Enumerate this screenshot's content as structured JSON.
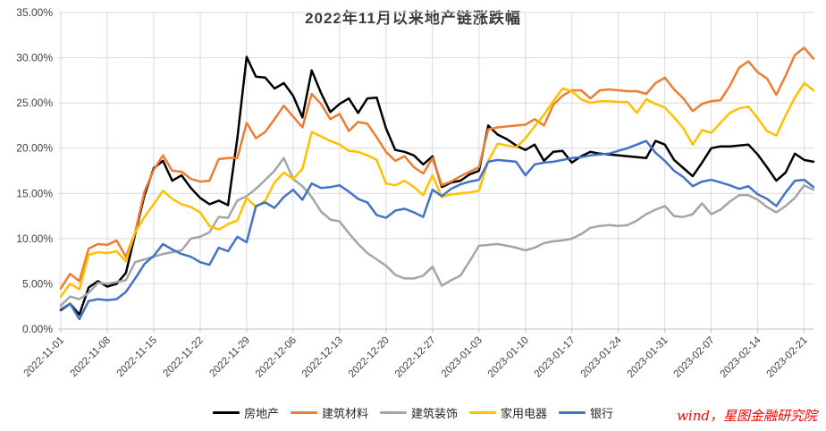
{
  "title": "2022年11月以来地产链涨跌幅",
  "watermark": "wind，星图金融研究院",
  "chart_data": {
    "type": "line",
    "title": "2022年11月以来地产链涨跌幅",
    "legend_position": "bottom",
    "grid": true,
    "y_axis": {
      "min": 0,
      "max": 35,
      "step": 5,
      "tick_labels": [
        "0.00%",
        "5.00%",
        "10.00%",
        "15.00%",
        "20.00%",
        "25.00%",
        "30.00%",
        "35.00%"
      ]
    },
    "x_labels": [
      "2022-11-01",
      "2022-11-08",
      "2022-11-15",
      "2022-11-22",
      "2022-11-29",
      "2022-12-06",
      "2022-12-13",
      "2022-12-20",
      "2022-12-27",
      "2023-01-03",
      "2023-01-10",
      "2023-01-17",
      "2023-01-24",
      "2023-01-31",
      "2023-02-07",
      "2023-02-14",
      "2023-02-21"
    ],
    "points_per_label": 5,
    "unit": "percent",
    "series": [
      {
        "name": "房地产",
        "color": "#000000",
        "values": [
          2.1,
          2.8,
          1.6,
          4.6,
          5.3,
          4.7,
          5.0,
          6.2,
          10.5,
          14.8,
          17.8,
          18.6,
          16.4,
          17.0,
          15.6,
          14.5,
          13.8,
          14.2,
          13.7,
          21.1,
          30.1,
          27.9,
          27.8,
          26.6,
          27.2,
          25.8,
          23.4,
          28.6,
          26.1,
          24.0,
          24.9,
          25.5,
          23.9,
          25.5,
          25.6,
          22.2,
          19.8,
          19.6,
          19.2,
          18.2,
          19.1,
          15.7,
          16.2,
          16.4,
          17.1,
          17.5,
          22.5,
          21.5,
          21.0,
          20.3,
          19.8,
          20.4,
          18.6,
          19.6,
          19.7,
          18.4,
          19.1,
          19.6,
          19.4,
          19.3,
          19.2,
          19.1,
          19.0,
          18.9,
          20.8,
          20.4,
          18.7,
          17.8,
          16.9,
          18.4,
          20.0,
          20.2,
          20.2,
          20.3,
          20.4,
          19.3,
          17.9,
          16.4,
          17.3,
          19.4,
          18.7,
          18.5
        ]
      },
      {
        "name": "建筑材料",
        "color": "#ED7D31",
        "values": [
          4.5,
          6.1,
          5.3,
          8.9,
          9.4,
          9.3,
          9.8,
          8.0,
          10.7,
          15.2,
          17.6,
          19.2,
          17.5,
          17.4,
          16.6,
          16.3,
          16.4,
          18.8,
          18.9,
          18.9,
          22.8,
          21.1,
          21.8,
          23.2,
          24.7,
          23.5,
          22.3,
          26.0,
          24.9,
          23.2,
          23.8,
          21.9,
          22.9,
          22.7,
          21.2,
          19.6,
          18.6,
          19.1,
          17.9,
          17.2,
          18.9,
          15.9,
          16.3,
          16.9,
          17.4,
          17.9,
          22.1,
          22.3,
          22.4,
          22.5,
          22.6,
          23.2,
          22.5,
          24.8,
          25.8,
          26.4,
          26.4,
          25.5,
          26.4,
          26.5,
          26.4,
          26.3,
          26.3,
          26.0,
          27.2,
          27.8,
          26.5,
          25.5,
          24.1,
          24.9,
          25.2,
          25.3,
          26.9,
          28.9,
          29.6,
          28.4,
          27.7,
          25.9,
          28.0,
          30.3,
          31.1,
          29.9
        ]
      },
      {
        "name": "建筑装饰",
        "color": "#A5A5A5",
        "values": [
          2.6,
          3.6,
          3.3,
          4.0,
          5.1,
          5.0,
          5.2,
          5.4,
          7.4,
          7.7,
          8.0,
          8.3,
          8.5,
          8.7,
          10.0,
          10.2,
          10.7,
          12.4,
          12.3,
          14.2,
          14.7,
          15.5,
          16.5,
          17.5,
          18.9,
          16.6,
          15.8,
          14.6,
          13.0,
          12.1,
          11.9,
          10.6,
          9.4,
          8.4,
          7.7,
          7.0,
          6.0,
          5.6,
          5.6,
          5.9,
          6.9,
          4.8,
          5.4,
          5.9,
          7.5,
          9.2,
          9.3,
          9.4,
          9.2,
          9.0,
          8.7,
          9.0,
          9.5,
          9.7,
          9.8,
          10.0,
          10.5,
          11.2,
          11.4,
          11.5,
          11.4,
          11.5,
          12.0,
          12.7,
          13.2,
          13.6,
          12.5,
          12.4,
          12.7,
          13.9,
          12.7,
          13.2,
          14.1,
          14.8,
          14.8,
          14.3,
          13.5,
          12.9,
          13.6,
          14.5,
          15.9,
          15.4
        ]
      },
      {
        "name": "家用电器",
        "color": "#FFC000",
        "values": [
          3.6,
          5.0,
          4.4,
          8.2,
          8.5,
          8.4,
          8.6,
          7.5,
          10.7,
          12.4,
          13.8,
          15.3,
          14.4,
          13.8,
          13.5,
          12.9,
          11.4,
          11.0,
          11.6,
          12.0,
          14.5,
          13.5,
          14.2,
          16.2,
          17.3,
          16.6,
          17.7,
          21.8,
          21.3,
          20.8,
          20.4,
          19.7,
          19.6,
          19.2,
          18.7,
          16.1,
          15.9,
          16.4,
          15.7,
          14.8,
          17.0,
          14.6,
          14.9,
          15.0,
          15.1,
          15.3,
          18.6,
          20.5,
          20.3,
          20.1,
          21.1,
          22.4,
          23.7,
          25.2,
          26.6,
          26.3,
          25.4,
          25.0,
          25.2,
          25.2,
          25.1,
          25.1,
          23.9,
          25.4,
          24.9,
          24.5,
          23.4,
          22.2,
          20.4,
          22.0,
          21.7,
          22.8,
          23.9,
          24.4,
          24.6,
          23.3,
          21.9,
          21.4,
          23.6,
          25.6,
          27.2,
          26.4
        ]
      },
      {
        "name": "银行",
        "color": "#4472C4",
        "values": [
          2.2,
          2.8,
          1.1,
          3.1,
          3.3,
          3.2,
          3.3,
          4.1,
          5.6,
          7.2,
          8.1,
          9.4,
          8.8,
          8.3,
          8.0,
          7.4,
          7.1,
          9.0,
          8.6,
          10.2,
          9.6,
          13.6,
          14.0,
          13.4,
          14.6,
          15.4,
          14.3,
          16.1,
          15.6,
          15.7,
          15.9,
          15.2,
          14.4,
          14.0,
          12.6,
          12.3,
          13.1,
          13.3,
          12.9,
          12.4,
          15.4,
          14.7,
          15.5,
          16.0,
          16.3,
          16.5,
          18.5,
          18.7,
          18.6,
          18.5,
          17.0,
          18.2,
          18.4,
          18.5,
          18.7,
          18.9,
          19.0,
          19.2,
          19.3,
          19.4,
          19.7,
          20.0,
          20.4,
          20.8,
          19.5,
          18.6,
          17.5,
          16.8,
          15.8,
          16.3,
          16.5,
          16.2,
          15.9,
          15.5,
          15.8,
          14.9,
          14.4,
          13.6,
          15.1,
          16.4,
          16.5,
          15.7
        ]
      }
    ],
    "colors": {
      "gridline": "#D9D9D9",
      "axis": "#BFBFBF",
      "tick_text": "#404040",
      "title_text": "#3B3B3B",
      "watermark_text": "#FF0000"
    }
  }
}
